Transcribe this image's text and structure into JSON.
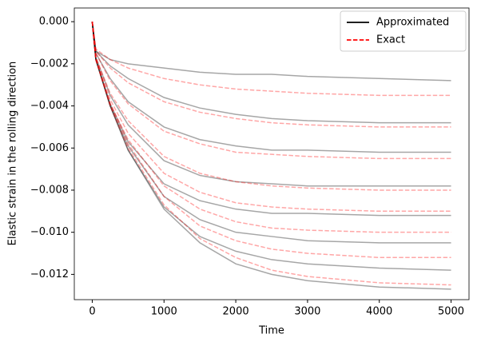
{
  "chart_data": {
    "type": "line",
    "x_label": "Time",
    "y_label": "Elastic strain in the rolling direction",
    "x": [
      0,
      50,
      250,
      500,
      1000,
      1500,
      2000,
      2500,
      3000,
      4000,
      5000
    ],
    "xlim": [
      -250,
      5250
    ],
    "ylim": [
      -0.0132,
      0.00065
    ],
    "xticks": [
      0,
      1000,
      2000,
      3000,
      4000,
      5000
    ],
    "yticks": [
      {
        "value": 0,
        "label": "0.000"
      },
      {
        "value": -0.002,
        "label": "−0.002"
      },
      {
        "value": -0.004,
        "label": "−0.004"
      },
      {
        "value": -0.006,
        "label": "−0.006"
      },
      {
        "value": -0.008,
        "label": "−0.008"
      },
      {
        "value": -0.01,
        "label": "−0.010"
      },
      {
        "value": -0.012,
        "label": "−0.012"
      }
    ],
    "legend": "upper right",
    "alpha": 0.35,
    "series": [
      {
        "name": "Approximated",
        "color": "#000000",
        "linestyle": "solid",
        "values": [
          [
            0,
            -0.0018,
            -0.004,
            -0.0061,
            -0.0089,
            -0.0105,
            -0.0115,
            -0.012,
            -0.0123,
            -0.0126,
            -0.0127
          ],
          [
            0,
            -0.0018,
            -0.004,
            -0.0061,
            -0.0088,
            -0.0102,
            -0.0109,
            -0.0113,
            -0.0115,
            -0.0117,
            -0.0118
          ],
          [
            0,
            -0.0018,
            -0.004,
            -0.0059,
            -0.0083,
            -0.0094,
            -0.01,
            -0.0102,
            -0.0104,
            -0.0105,
            -0.0105
          ],
          [
            0,
            -0.0018,
            -0.0039,
            -0.0057,
            -0.0077,
            -0.0085,
            -0.0089,
            -0.0091,
            -0.0091,
            -0.0092,
            -0.0092
          ],
          [
            0,
            -0.0017,
            -0.0035,
            -0.0049,
            -0.0066,
            -0.0073,
            -0.0076,
            -0.0077,
            -0.0078,
            -0.0078,
            -0.0078
          ],
          [
            0,
            -0.0015,
            -0.0027,
            -0.0038,
            -0.005,
            -0.0056,
            -0.0059,
            -0.0061,
            -0.0061,
            -0.0062,
            -0.0062
          ],
          [
            0,
            -0.0014,
            -0.0021,
            -0.0027,
            -0.0036,
            -0.0041,
            -0.0044,
            -0.0046,
            -0.0047,
            -0.0048,
            -0.0048
          ],
          [
            0,
            -0.0014,
            -0.0018,
            -0.002,
            -0.0022,
            -0.0024,
            -0.0025,
            -0.0025,
            -0.0026,
            -0.0027,
            -0.0028
          ]
        ]
      },
      {
        "name": "Exact",
        "color": "#ff0000",
        "linestyle": "dashed",
        "values": [
          [
            0,
            -0.0018,
            -0.004,
            -0.006,
            -0.0087,
            -0.0103,
            -0.0112,
            -0.0118,
            -0.0121,
            -0.0124,
            -0.0125
          ],
          [
            0,
            -0.0018,
            -0.0039,
            -0.0058,
            -0.0083,
            -0.0097,
            -0.0104,
            -0.0108,
            -0.011,
            -0.0112,
            -0.0112
          ],
          [
            0,
            -0.0018,
            -0.0039,
            -0.0056,
            -0.0078,
            -0.0089,
            -0.0095,
            -0.0098,
            -0.0099,
            -0.01,
            -0.01
          ],
          [
            0,
            -0.0017,
            -0.0037,
            -0.0053,
            -0.0072,
            -0.0081,
            -0.0086,
            -0.0088,
            -0.0089,
            -0.009,
            -0.009
          ],
          [
            0,
            -0.0017,
            -0.0034,
            -0.0047,
            -0.0064,
            -0.0072,
            -0.0076,
            -0.0078,
            -0.0079,
            -0.008,
            -0.008
          ],
          [
            0,
            -0.0015,
            -0.0028,
            -0.0039,
            -0.0052,
            -0.0058,
            -0.0062,
            -0.0063,
            -0.0064,
            -0.0065,
            -0.0065
          ],
          [
            0,
            -0.0014,
            -0.0022,
            -0.0029,
            -0.0038,
            -0.0043,
            -0.0046,
            -0.0048,
            -0.0049,
            -0.005,
            -0.005
          ],
          [
            0,
            -0.0013,
            -0.0018,
            -0.0022,
            -0.0027,
            -0.003,
            -0.0032,
            -0.0033,
            -0.0034,
            -0.0035,
            -0.0035
          ]
        ]
      }
    ]
  }
}
